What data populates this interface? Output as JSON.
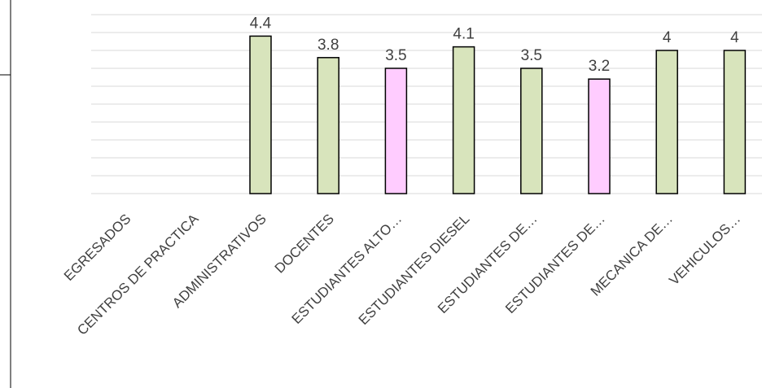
{
  "chart_data": {
    "type": "bar",
    "categories": [
      "EGRESADOS",
      "CENTROS DE PRACTICA",
      "ADMINISTRATIVOS",
      "DOCENTES",
      "ESTUDIANTES ALTO…",
      "ESTUDIANTES DIESEL",
      "ESTUDIANTES DE…",
      "ESTUDIANTES DE…",
      "MECANICA DE…",
      "VEHICULOS…"
    ],
    "values": [
      null,
      null,
      4.4,
      3.8,
      3.5,
      4.1,
      3.5,
      3.2,
      4,
      4
    ],
    "value_labels": [
      "",
      "",
      "4.4",
      "3.8",
      "3.5",
      "4.1",
      "3.5",
      "3.2",
      "4",
      "4"
    ],
    "bar_colors": [
      "#d8e4bc",
      "#d8e4bc",
      "#d8e4bc",
      "#d8e4bc",
      "#ffccff",
      "#d8e4bc",
      "#d8e4bc",
      "#ffccff",
      "#d8e4bc",
      "#d8e4bc"
    ],
    "ylim": [
      0,
      5.2
    ],
    "grid_step": 0.5,
    "grid": true,
    "colors": {
      "green": "#d8e4bc",
      "pink": "#ffccff",
      "gridline": "#d9d9d9",
      "bar_border": "#000000",
      "text": "#404040"
    }
  }
}
